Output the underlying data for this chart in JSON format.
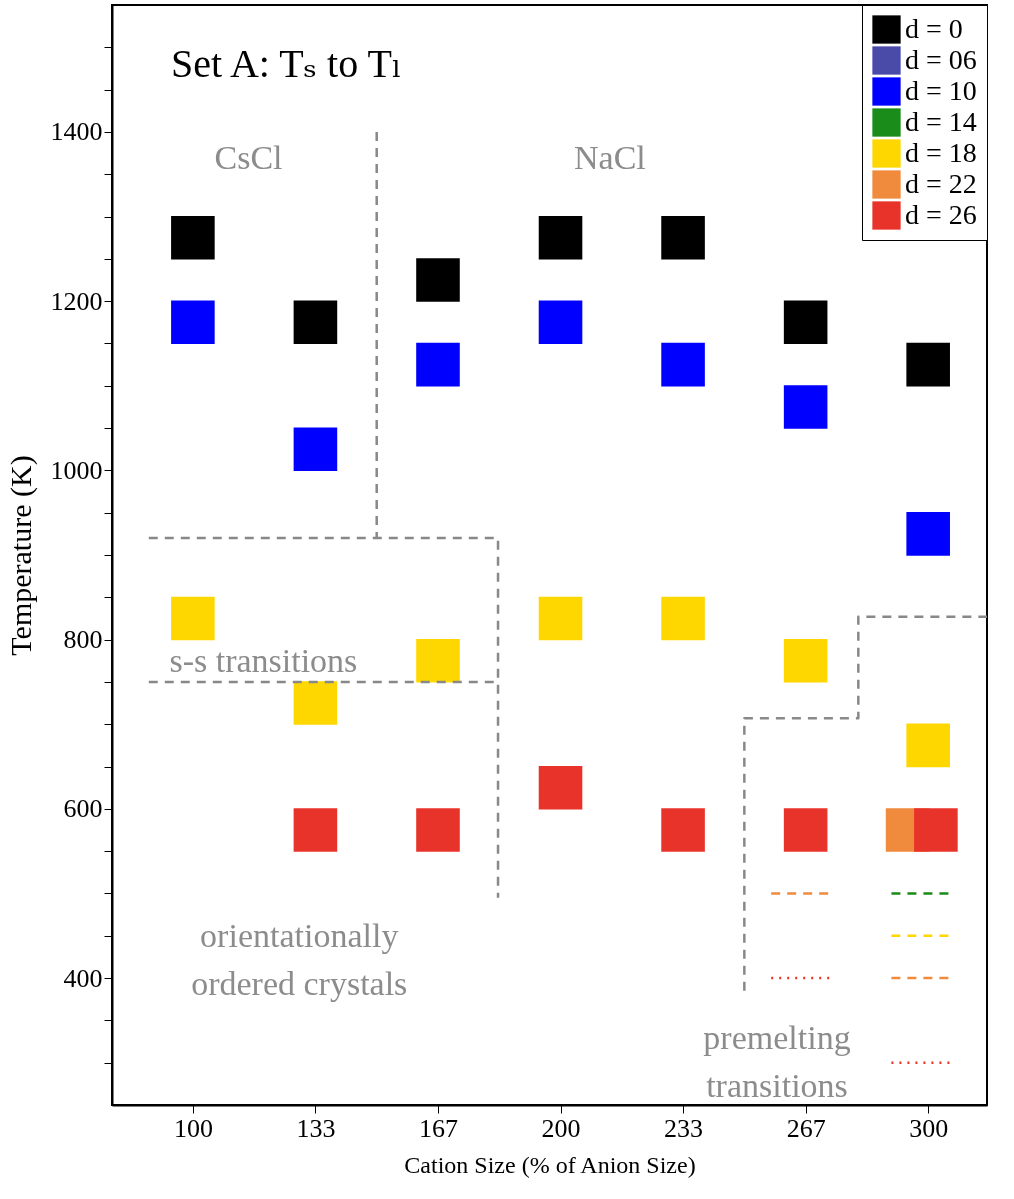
{
  "chart_data": {
    "type": "scatter",
    "title": "Set A:   Tₛ  to Tₗ",
    "xlabel": "Cation Size (% of Anion Size)",
    "ylabel": "Temperature (K)",
    "xlim": [
      78,
      316
    ],
    "ylim": [
      250,
      1550
    ],
    "xticks": [
      100,
      {
        "value": 133.33,
        "label": "133"
      },
      {
        "value": 166.67,
        "label": "167"
      },
      200,
      {
        "value": 233.33,
        "label": "233"
      },
      {
        "value": 266.67,
        "label": "267"
      },
      300
    ],
    "yticks": [
      {
        "value": 300,
        "label": null
      },
      {
        "value": 350,
        "label": null
      },
      400,
      {
        "value": 450,
        "label": null
      },
      {
        "value": 500,
        "label": null
      },
      {
        "value": 550,
        "label": null
      },
      600,
      {
        "value": 650,
        "label": null
      },
      {
        "value": 700,
        "label": null
      },
      {
        "value": 750,
        "label": null
      },
      800,
      {
        "value": 850,
        "label": null
      },
      {
        "value": 900,
        "label": null
      },
      {
        "value": 950,
        "label": null
      },
      1000,
      {
        "value": 1050,
        "label": null
      },
      {
        "value": 1100,
        "label": null
      },
      {
        "value": 1150,
        "label": null
      },
      1200,
      {
        "value": 1250,
        "label": null
      },
      {
        "value": 1300,
        "label": null
      },
      {
        "value": 1350,
        "label": null
      },
      1400,
      {
        "value": 1450,
        "label": null
      },
      {
        "value": 1500,
        "label": null
      }
    ],
    "grid": false,
    "legend": "top right",
    "marker": "square",
    "series": [
      {
        "name": "d = 0",
        "color": "#000000",
        "x": [
          100,
          133.33,
          166.67,
          200,
          233.33,
          266.67,
          300
        ],
        "values": [
          1275,
          1175,
          1225,
          1275,
          1275,
          1175,
          1125
        ]
      },
      {
        "name": "d = 06",
        "color": "#4a4aa8"
      },
      {
        "name": "d = 10",
        "color": "#0000ff",
        "x": [
          100,
          133.33,
          166.67,
          200,
          233.33,
          266.67,
          300
        ],
        "values": [
          1175,
          1025,
          1125,
          1175,
          1125,
          1075,
          925
        ]
      },
      {
        "name": "d = 14",
        "color": "#1a8c1a"
      },
      {
        "name": "d = 18",
        "color": "#ffd700",
        "x": [
          100,
          133.33,
          166.67,
          200,
          233.33,
          266.67,
          300
        ],
        "values": [
          825,
          725,
          775,
          825,
          825,
          775,
          675
        ]
      },
      {
        "name": "d = 22",
        "color": "#f08a3c",
        "x": [
          294.4
        ],
        "values": [
          575
        ]
      },
      {
        "name": "d = 26",
        "color": "#e8332a",
        "x": [
          133.33,
          166.67,
          200,
          233.33,
          266.67,
          302.1
        ],
        "values": [
          575,
          575,
          625,
          575,
          575,
          575
        ]
      },
      {
        "type": "line",
        "color": "#f08a3c",
        "line_style": "dashed",
        "marker": "none",
        "x": [
          257.3,
          273.3
        ],
        "values": [
          500,
          500
        ]
      },
      {
        "type": "line",
        "color": "#e8332a",
        "line_style": "dotted",
        "marker": "none",
        "x": [
          257.3,
          273.3
        ],
        "values": [
          400,
          400
        ]
      },
      {
        "type": "line",
        "color": "#1a8c1a",
        "line_style": "dashed",
        "marker": "none",
        "x": [
          290,
          306
        ],
        "values": [
          500,
          500
        ]
      },
      {
        "type": "line",
        "color": "#ffd700",
        "line_style": "dashed",
        "marker": "none",
        "x": [
          290,
          306
        ],
        "values": [
          450,
          450
        ]
      },
      {
        "type": "line",
        "color": "#f08a3c",
        "line_style": "dashed",
        "marker": "none",
        "x": [
          290,
          306
        ],
        "values": [
          400,
          400
        ]
      },
      {
        "type": "line",
        "color": "#e8332a",
        "line_style": "dotted",
        "marker": "none",
        "x": [
          290,
          306
        ],
        "values": [
          300,
          300
        ]
      },
      {
        "type": "line",
        "color": "#888888",
        "line_style": "dashed",
        "marker": "none",
        "x": [
          150,
          150
        ],
        "values": [
          1400,
          920
        ]
      },
      {
        "type": "line",
        "color": "#888888",
        "line_style": "dashed",
        "marker": "none",
        "x": [
          88,
          183,
          183
        ],
        "values": [
          920,
          920,
          495
        ]
      },
      {
        "type": "line",
        "color": "#888888",
        "line_style": "dashed",
        "marker": "none",
        "x": [
          88,
          183
        ],
        "values": [
          750,
          750
        ]
      },
      {
        "type": "line",
        "color": "#888888",
        "line_style": "dashed",
        "marker": "none",
        "x": [
          250,
          250,
          281,
          281,
          316
        ],
        "values": [
          385,
          707,
          707,
          827,
          827
        ]
      }
    ],
    "annotations": [
      "CsCl",
      "NaCl",
      "s-s transitions",
      "orientationally\nordered crystals",
      "premelting\ntransitions"
    ]
  }
}
